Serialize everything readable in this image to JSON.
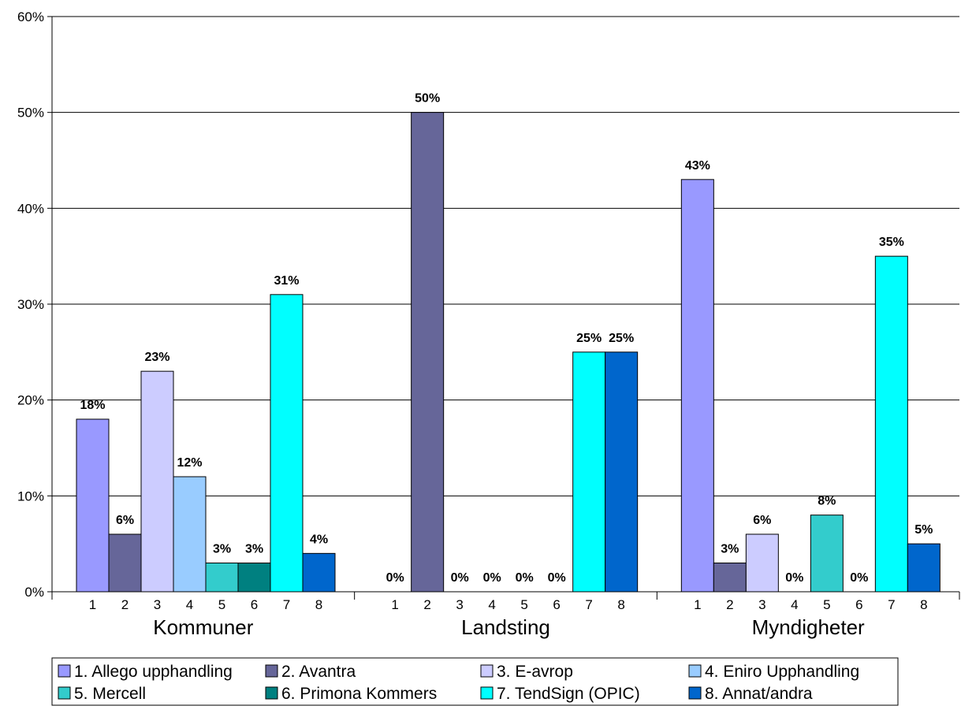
{
  "chart_data": {
    "type": "bar",
    "ylim": [
      0,
      60
    ],
    "y_ticks": [
      "0%",
      "10%",
      "20%",
      "30%",
      "40%",
      "50%",
      "60%"
    ],
    "grid": true,
    "legend_position": "bottom",
    "groups": [
      "Kommuner",
      "Landsting",
      "Myndigheter"
    ],
    "sub_categories": [
      "1",
      "2",
      "3",
      "4",
      "5",
      "6",
      "7",
      "8"
    ],
    "series": [
      {
        "name": "1. Allego upphandling",
        "color": "#9999FF",
        "values": [
          18,
          0,
          43
        ]
      },
      {
        "name": "2. Avantra",
        "color": "#666699",
        "values": [
          6,
          50,
          3
        ]
      },
      {
        "name": "3. E-avrop",
        "color": "#CCCCFF",
        "values": [
          23,
          0,
          6
        ]
      },
      {
        "name": "4. Eniro Upphandling",
        "color": "#99CCFF",
        "values": [
          12,
          0,
          0
        ]
      },
      {
        "name": "5. Mercell",
        "color": "#33CCCC",
        "values": [
          3,
          0,
          8
        ]
      },
      {
        "name": "6. Primona Kommers",
        "color": "#008080",
        "values": [
          3,
          0,
          0
        ]
      },
      {
        "name": "7. TendSign (OPIC)",
        "color": "#00FFFF",
        "values": [
          31,
          25,
          35
        ]
      },
      {
        "name": "8. Annat/andra",
        "color": "#0066CC",
        "values": [
          4,
          25,
          5
        ]
      }
    ],
    "data_labels": [
      [
        "18%",
        "6%",
        "23%",
        "12%",
        "3%",
        "3%",
        "31%",
        "4%"
      ],
      [
        "0%",
        "50%",
        "0%",
        "0%",
        "0%",
        "0%",
        "25%",
        "25%"
      ],
      [
        "43%",
        "3%",
        "6%",
        "0%",
        "8%",
        "0%",
        "35%",
        "5%"
      ]
    ]
  }
}
